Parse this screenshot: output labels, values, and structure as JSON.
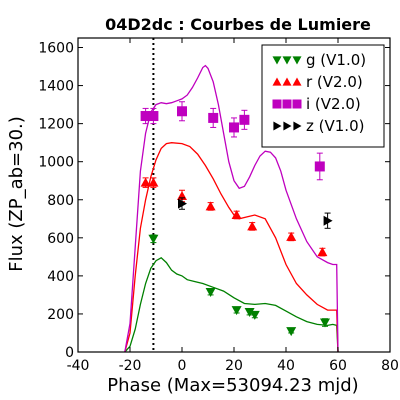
{
  "chart_data": {
    "type": "scatter",
    "title": "04D2dc : Courbes de Lumiere",
    "xlabel": "Phase (Max=53094.23 mjd)",
    "ylabel": "Flux (ZP_ab=30.)",
    "xlim": [
      -40,
      80
    ],
    "ylim": [
      0,
      1650
    ],
    "x_ticks": [
      -40,
      -20,
      0,
      20,
      40,
      60,
      80
    ],
    "y_ticks": [
      0,
      200,
      400,
      600,
      800,
      1000,
      1200,
      1400,
      1600
    ],
    "vertical_line_x": -11,
    "legend_position": "top-right",
    "series": [
      {
        "name": "g (V1.0)",
        "color": "#008000",
        "marker": "triangle-down",
        "points": [
          {
            "x": -11,
            "y": 595,
            "err": 20
          },
          {
            "x": 11,
            "y": 315,
            "err": 15
          },
          {
            "x": 21,
            "y": 220,
            "err": 15
          },
          {
            "x": 26,
            "y": 210,
            "err": 15
          },
          {
            "x": 28,
            "y": 195,
            "err": 15
          },
          {
            "x": 42,
            "y": 110,
            "err": 10
          },
          {
            "x": 55,
            "y": 155,
            "err": 20
          }
        ],
        "model": [
          [
            -22,
            0
          ],
          [
            -20,
            30
          ],
          [
            -18,
            120
          ],
          [
            -16,
            250
          ],
          [
            -14,
            360
          ],
          [
            -12,
            440
          ],
          [
            -10,
            480
          ],
          [
            -8,
            495
          ],
          [
            -6,
            470
          ],
          [
            -4,
            430
          ],
          [
            -2,
            410
          ],
          [
            0,
            400
          ],
          [
            2,
            380
          ],
          [
            5,
            370
          ],
          [
            8,
            360
          ],
          [
            12,
            340
          ],
          [
            16,
            320
          ],
          [
            20,
            285
          ],
          [
            24,
            255
          ],
          [
            28,
            250
          ],
          [
            32,
            255
          ],
          [
            36,
            245
          ],
          [
            40,
            215
          ],
          [
            44,
            185
          ],
          [
            48,
            160
          ],
          [
            52,
            145
          ],
          [
            56,
            140
          ],
          [
            58,
            145
          ],
          [
            59.5,
            140
          ],
          [
            60,
            0
          ]
        ]
      },
      {
        "name": "r (V2.0)",
        "color": "#ff0000",
        "marker": "triangle-up",
        "points": [
          {
            "x": -14,
            "y": 890,
            "err": 25
          },
          {
            "x": -11,
            "y": 890,
            "err": 25
          },
          {
            "x": 0,
            "y": 820,
            "err": 30
          },
          {
            "x": 11,
            "y": 765,
            "err": 20
          },
          {
            "x": 21,
            "y": 720,
            "err": 20
          },
          {
            "x": 27,
            "y": 660,
            "err": 20
          },
          {
            "x": 42,
            "y": 605,
            "err": 20
          },
          {
            "x": 54,
            "y": 525,
            "err": 20
          }
        ],
        "model": [
          [
            -22,
            0
          ],
          [
            -20,
            100
          ],
          [
            -18,
            400
          ],
          [
            -16,
            650
          ],
          [
            -14,
            800
          ],
          [
            -12,
            920
          ],
          [
            -10,
            1010
          ],
          [
            -8,
            1070
          ],
          [
            -6,
            1095
          ],
          [
            -4,
            1100
          ],
          [
            0,
            1095
          ],
          [
            3,
            1080
          ],
          [
            6,
            1040
          ],
          [
            9,
            980
          ],
          [
            12,
            910
          ],
          [
            15,
            830
          ],
          [
            18,
            760
          ],
          [
            20,
            720
          ],
          [
            22,
            700
          ],
          [
            25,
            710
          ],
          [
            28,
            720
          ],
          [
            32,
            700
          ],
          [
            36,
            600
          ],
          [
            40,
            460
          ],
          [
            44,
            360
          ],
          [
            48,
            300
          ],
          [
            52,
            250
          ],
          [
            56,
            220
          ],
          [
            58,
            220
          ],
          [
            59.5,
            220
          ],
          [
            60,
            0
          ]
        ]
      },
      {
        "name": "i (V2.0)",
        "color": "#bf00bf",
        "marker": "square",
        "points": [
          {
            "x": -14,
            "y": 1240,
            "err": 40
          },
          {
            "x": -11,
            "y": 1240,
            "err": 40
          },
          {
            "x": 0,
            "y": 1265,
            "err": 50
          },
          {
            "x": 12,
            "y": 1230,
            "err": 50
          },
          {
            "x": 20,
            "y": 1180,
            "err": 50
          },
          {
            "x": 24,
            "y": 1220,
            "err": 50
          },
          {
            "x": 53,
            "y": 975,
            "err": 70
          }
        ],
        "model": [
          [
            -22,
            0
          ],
          [
            -20,
            150
          ],
          [
            -18,
            550
          ],
          [
            -16,
            950
          ],
          [
            -14,
            1150
          ],
          [
            -12,
            1260
          ],
          [
            -10,
            1300
          ],
          [
            -8,
            1310
          ],
          [
            -6,
            1305
          ],
          [
            -4,
            1310
          ],
          [
            -2,
            1320
          ],
          [
            0,
            1330
          ],
          [
            2,
            1350
          ],
          [
            4,
            1390
          ],
          [
            6,
            1440
          ],
          [
            8,
            1495
          ],
          [
            9,
            1505
          ],
          [
            10,
            1490
          ],
          [
            12,
            1420
          ],
          [
            14,
            1300
          ],
          [
            16,
            1150
          ],
          [
            18,
            1000
          ],
          [
            20,
            900
          ],
          [
            22,
            860
          ],
          [
            24,
            870
          ],
          [
            26,
            920
          ],
          [
            28,
            980
          ],
          [
            30,
            1030
          ],
          [
            32,
            1055
          ],
          [
            34,
            1050
          ],
          [
            36,
            1020
          ],
          [
            38,
            950
          ],
          [
            40,
            850
          ],
          [
            44,
            700
          ],
          [
            48,
            580
          ],
          [
            52,
            500
          ],
          [
            56,
            470
          ],
          [
            58,
            460
          ],
          [
            59.5,
            460
          ],
          [
            60,
            0
          ]
        ]
      },
      {
        "name": "z (V1.0)",
        "color": "#000000",
        "marker": "triangle-right",
        "points": [
          {
            "x": 0,
            "y": 780,
            "err": 30
          },
          {
            "x": 56,
            "y": 690,
            "err": 40
          }
        ]
      }
    ]
  }
}
